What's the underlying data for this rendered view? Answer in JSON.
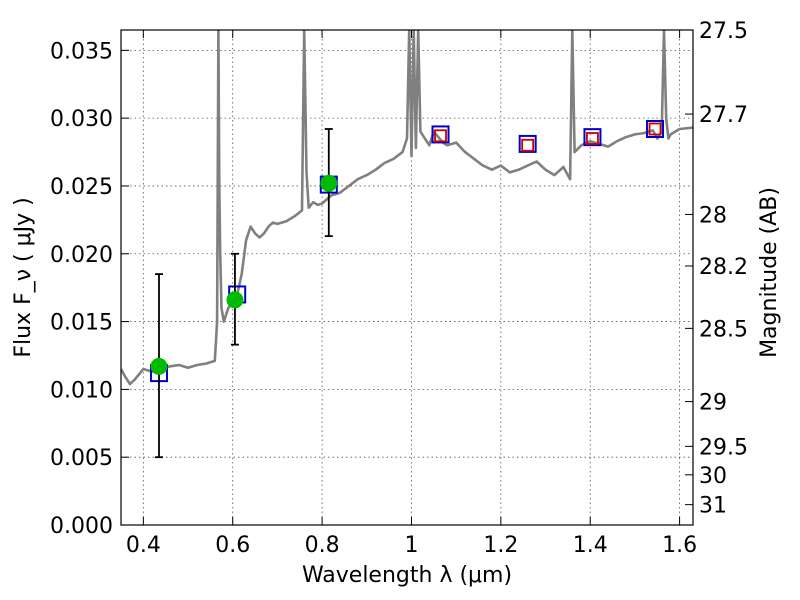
{
  "chart_data": {
    "type": "line",
    "title": "",
    "xlabel": "Wavelength  λ (μm)",
    "ylabel": "Flux  F_ν  ( μJy )",
    "ylabel_right": "Magnitude (AB)",
    "xlim": [
      0.35,
      1.63
    ],
    "ylim": [
      0.0,
      0.0365
    ],
    "grid": true,
    "xticks": [
      0.4,
      0.6,
      0.8,
      1.0,
      1.2,
      1.4,
      1.6
    ],
    "xtick_labels": [
      "0.4",
      "0.6",
      "0.8",
      "1",
      "1.2",
      "1.4",
      "1.6"
    ],
    "yticks": [
      0.0,
      0.005,
      0.01,
      0.015,
      0.02,
      0.025,
      0.03,
      0.035
    ],
    "ytick_labels": [
      "0.000",
      "0.005",
      "0.010",
      "0.015",
      "0.020",
      "0.025",
      "0.030",
      "0.035"
    ],
    "right_ticks": [
      {
        "label": "27.5",
        "flux": 0.0365
      },
      {
        "label": "27.7",
        "flux": 0.0303
      },
      {
        "label": "28",
        "flux": 0.0229
      },
      {
        "label": "28.2",
        "flux": 0.0191
      },
      {
        "label": "28.5",
        "flux": 0.0145
      },
      {
        "label": "29",
        "flux": 0.0091
      },
      {
        "label": "29.5",
        "flux": 0.0058
      },
      {
        "label": "30",
        "flux": 0.0037
      },
      {
        "label": "31",
        "flux": 0.0015
      }
    ],
    "series": [
      {
        "kind": "spectrum",
        "color": "#808080",
        "x": [
          0.35,
          0.36,
          0.37,
          0.38,
          0.39,
          0.4,
          0.42,
          0.44,
          0.46,
          0.48,
          0.5,
          0.52,
          0.54,
          0.56,
          0.565,
          0.568,
          0.57,
          0.572,
          0.575,
          0.58,
          0.59,
          0.6,
          0.61,
          0.62,
          0.63,
          0.64,
          0.65,
          0.66,
          0.67,
          0.68,
          0.69,
          0.7,
          0.72,
          0.74,
          0.755,
          0.76,
          0.765,
          0.77,
          0.78,
          0.79,
          0.8,
          0.81,
          0.82,
          0.84,
          0.86,
          0.88,
          0.9,
          0.92,
          0.94,
          0.96,
          0.98,
          0.99,
          0.995,
          1.0,
          1.005,
          1.01,
          1.015,
          1.02,
          1.03,
          1.04,
          1.05,
          1.06,
          1.07,
          1.08,
          1.1,
          1.12,
          1.14,
          1.16,
          1.18,
          1.2,
          1.22,
          1.24,
          1.26,
          1.28,
          1.3,
          1.32,
          1.34,
          1.355,
          1.36,
          1.365,
          1.38,
          1.4,
          1.42,
          1.44,
          1.46,
          1.48,
          1.5,
          1.52,
          1.54,
          1.55,
          1.56,
          1.565,
          1.57,
          1.575,
          1.58,
          1.6,
          1.63
        ],
        "y": [
          0.0115,
          0.0109,
          0.0104,
          0.0107,
          0.0111,
          0.0115,
          0.0113,
          0.0115,
          0.0117,
          0.0118,
          0.0116,
          0.0118,
          0.0119,
          0.0121,
          0.015,
          0.0365,
          0.025,
          0.02,
          0.016,
          0.015,
          0.016,
          0.0165,
          0.017,
          0.0185,
          0.021,
          0.022,
          0.0215,
          0.0212,
          0.0215,
          0.022,
          0.0223,
          0.0222,
          0.0224,
          0.0228,
          0.0232,
          0.0365,
          0.026,
          0.0234,
          0.0238,
          0.0236,
          0.0237,
          0.024,
          0.0243,
          0.0245,
          0.025,
          0.0255,
          0.0258,
          0.0262,
          0.0267,
          0.027,
          0.0275,
          0.0285,
          0.0365,
          0.0272,
          0.0365,
          0.0278,
          0.0365,
          0.029,
          0.0285,
          0.028,
          0.029,
          0.0286,
          0.0282,
          0.028,
          0.0282,
          0.0275,
          0.027,
          0.0265,
          0.0262,
          0.0265,
          0.026,
          0.0262,
          0.0265,
          0.0268,
          0.0262,
          0.0258,
          0.0264,
          0.0255,
          0.0365,
          0.0275,
          0.028,
          0.0283,
          0.0281,
          0.0279,
          0.0283,
          0.0286,
          0.0288,
          0.0289,
          0.0291,
          0.0285,
          0.029,
          0.0365,
          0.03,
          0.0285,
          0.0288,
          0.0292,
          0.0293
        ]
      },
      {
        "kind": "model-flux-squares",
        "color": "#0000cc",
        "x": [
          0.435,
          0.61,
          0.815,
          1.065,
          1.26,
          1.405,
          1.545
        ],
        "y": [
          0.0112,
          0.017,
          0.0251,
          0.0288,
          0.0281,
          0.0286,
          0.0292
        ]
      },
      {
        "kind": "photometry-squares",
        "color": "#cc0000",
        "x": [
          1.065,
          1.26,
          1.405,
          1.545
        ],
        "y": [
          0.0287,
          0.028,
          0.0285,
          0.0292
        ]
      },
      {
        "kind": "observed-points",
        "color": "#00bb00",
        "x": [
          0.435,
          0.605,
          0.815
        ],
        "y": [
          0.0117,
          0.0166,
          0.0252
        ],
        "yerr_low": [
          0.005,
          0.0133,
          0.0213
        ],
        "yerr_high": [
          0.0185,
          0.02,
          0.0292
        ]
      }
    ]
  }
}
